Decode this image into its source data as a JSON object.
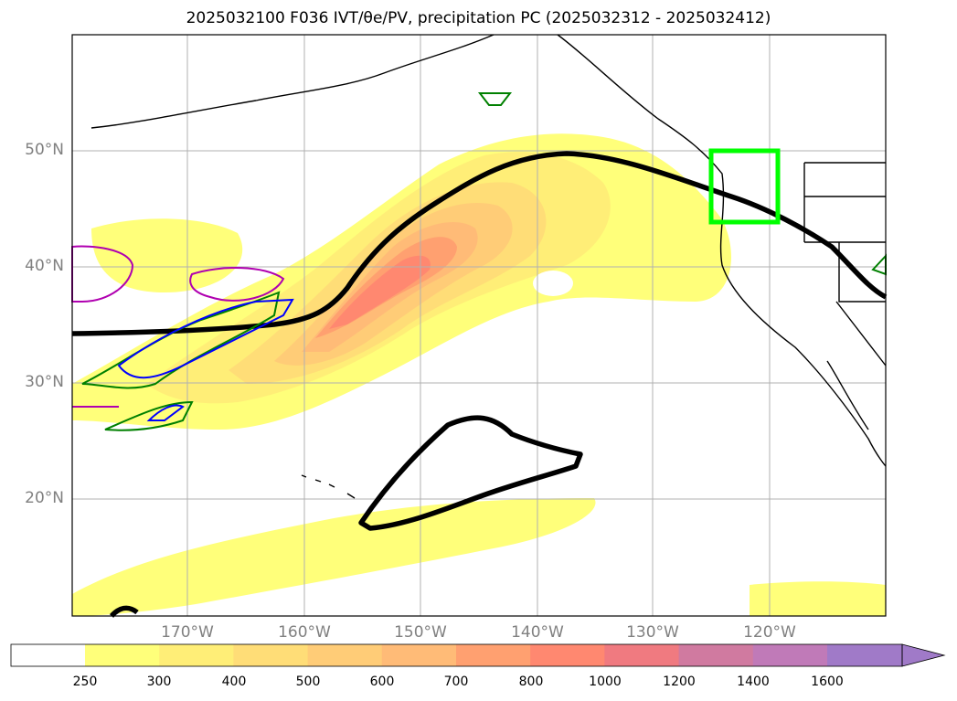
{
  "title": "2025032100 F036 IVT/θe/PV, precipitation PC (2025032312 - 2025032412)",
  "lon_labels": [
    "170°W",
    "160°W",
    "150°W",
    "140°W",
    "130°W",
    "120°W"
  ],
  "lat_labels": [
    "50°N",
    "40°N",
    "30°N",
    "20°N"
  ],
  "colorbar": {
    "ticks": [
      "250",
      "300",
      "400",
      "500",
      "600",
      "700",
      "800",
      "1000",
      "1200",
      "1400",
      "1600"
    ],
    "colors": [
      "#ffff7a",
      "#ffee77",
      "#ffdd77",
      "#ffcc77",
      "#ffbb77",
      "#ffa070",
      "#ff8870",
      "#f07a80",
      "#d07aa0",
      "#c07ab8",
      "#a07ac8"
    ],
    "extend": "max"
  },
  "overlays": {
    "ivt_fill": "yellow-to-red shading",
    "jet_contour_color": "#000000",
    "box_color": "#00ff00",
    "pv_contour_color": "#008000",
    "theta_contour_blue": "#0000ff",
    "theta_contour_magenta": "#b000b0"
  }
}
